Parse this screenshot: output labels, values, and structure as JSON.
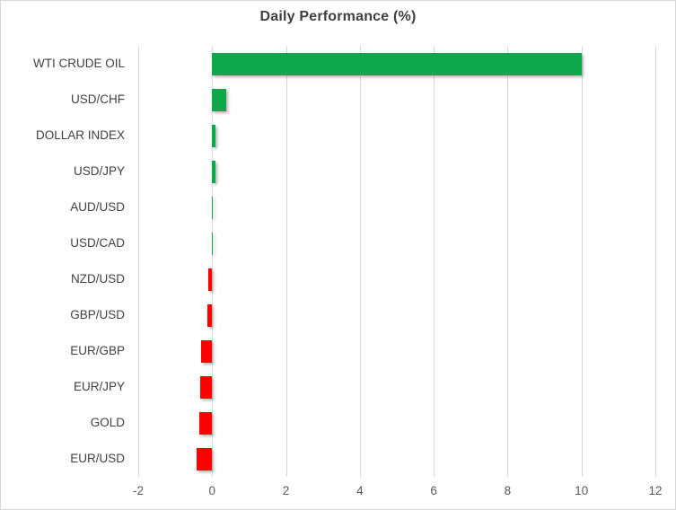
{
  "chart_data": {
    "type": "bar",
    "orientation": "horizontal",
    "title": "Daily Performance (%)",
    "categories": [
      "WTI CRUDE OIL",
      "USD/CHF",
      "DOLLAR INDEX",
      "USD/JPY",
      "AUD/USD",
      "USD/CAD",
      "NZD/USD",
      "GBP/USD",
      "EUR/GBP",
      "EUR/JPY",
      "GOLD",
      "EUR/USD"
    ],
    "values": [
      10.0,
      0.38,
      0.09,
      0.09,
      0.02,
      0.02,
      -0.11,
      -0.14,
      -0.29,
      -0.32,
      -0.34,
      -0.42
    ],
    "xlim": [
      -2,
      12
    ],
    "x_ticks": [
      -2,
      0,
      2,
      4,
      6,
      8,
      10,
      12
    ],
    "grid": true,
    "legend": false,
    "colors": {
      "positive": "#0EA74C",
      "negative": "#FE0000",
      "gridline": "#D9D9D9",
      "border": "#D9D9D9",
      "title_text": "#3F3F3F",
      "category_text": "#404040",
      "tick_text": "#595959"
    }
  }
}
